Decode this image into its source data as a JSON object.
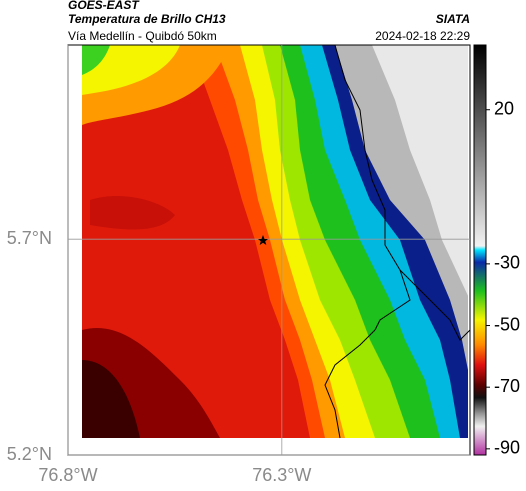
{
  "header": {
    "source": "GOES-EAST",
    "title": "Temperatura de Brillo CH13",
    "subtitle": "Vía Medellín - Quibdó 50km",
    "agency": "SIATA",
    "datetime": "2024-02-18 22:29"
  },
  "map": {
    "xlim": [
      -76.8,
      -75.86
    ],
    "ylim": [
      5.2,
      6.15
    ],
    "xticks": [
      {
        "value": -76.8,
        "label": "76.8°W"
      },
      {
        "value": -76.3,
        "label": "76.3°W"
      }
    ],
    "yticks": [
      {
        "value": 5.7,
        "label": "5.7°N"
      },
      {
        "value": 5.2,
        "label": "5.2°N"
      }
    ],
    "grid": true
  },
  "colorbar": {
    "clim": [
      -92,
      41
    ],
    "ticks": [
      20,
      -30,
      -50,
      -70,
      -90
    ]
  }
}
